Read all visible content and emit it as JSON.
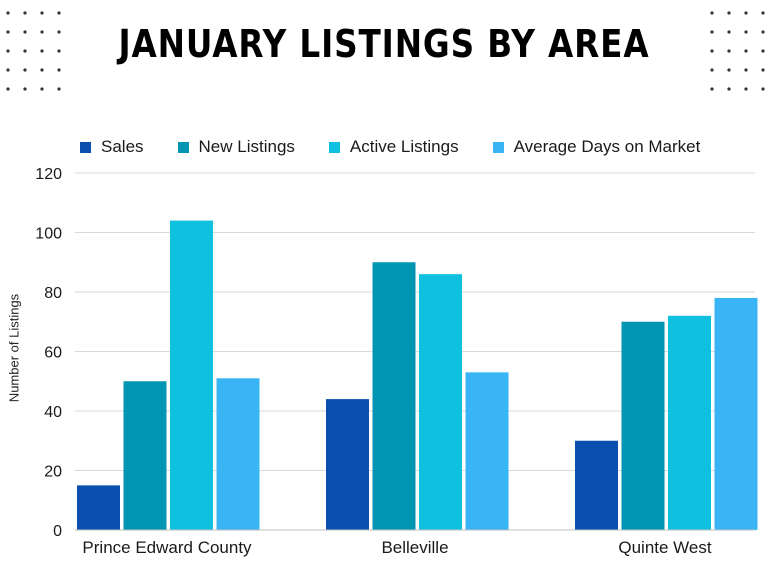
{
  "title": "JANUARY LISTINGS BY AREA",
  "colors": {
    "sales": "#0a4fae",
    "new_listings": "#0096b3",
    "active_listings": "#10c0df",
    "average_days": "#39b5f6",
    "grid": "#d9d9d9"
  },
  "chart_data": {
    "type": "bar",
    "title": "JANUARY LISTINGS BY AREA",
    "xlabel": "",
    "ylabel": "Number of Listings",
    "categories": [
      "Prince Edward County",
      "Belleville",
      "Quinte West"
    ],
    "series": [
      {
        "name": "Sales",
        "values": [
          15,
          44,
          30
        ]
      },
      {
        "name": "New Listings",
        "values": [
          50,
          90,
          70
        ]
      },
      {
        "name": "Active Listings",
        "values": [
          104,
          86,
          72
        ]
      },
      {
        "name": "Average Days on Market",
        "values": [
          51,
          53,
          78
        ]
      }
    ],
    "ylim": [
      0,
      120
    ],
    "yticks": [
      0,
      20,
      40,
      60,
      80,
      100,
      120
    ],
    "grid": true,
    "legend_position": "top"
  }
}
